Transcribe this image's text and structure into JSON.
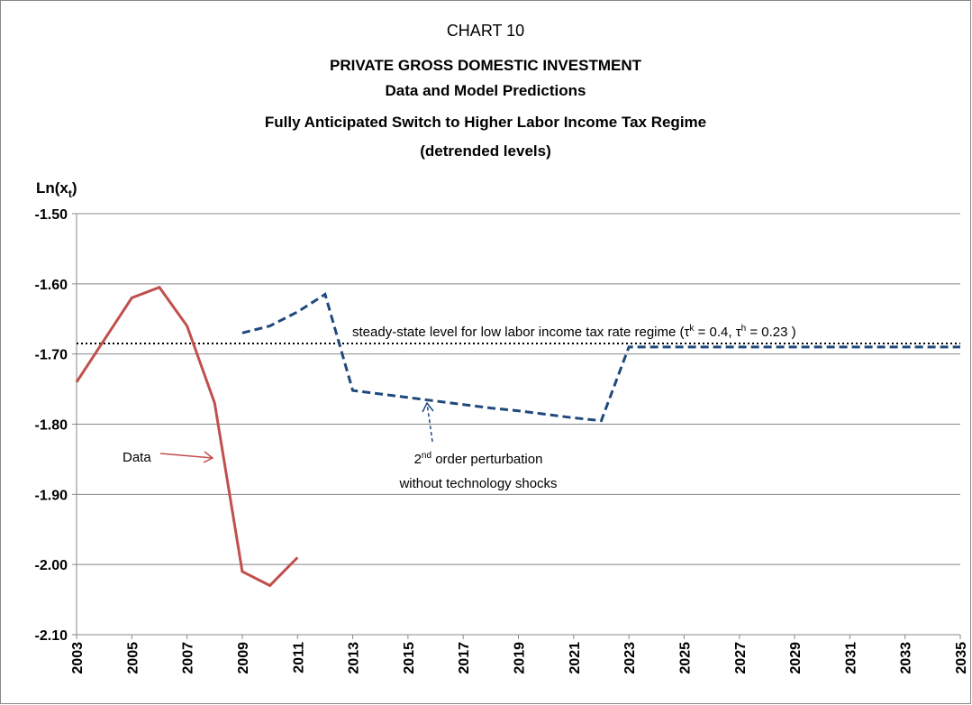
{
  "chart_data": {
    "type": "line",
    "title": "CHART 10",
    "subtitle": [
      "PRIVATE GROSS DOMESTIC INVESTMENT",
      "Data and Model Predictions",
      "Fully Anticipated Switch to Higher Labor Income Tax Regime",
      "(detrended levels)"
    ],
    "y_label": [
      "Ln(x",
      "t",
      ")"
    ],
    "x": [
      2003,
      2004,
      2005,
      2006,
      2007,
      2008,
      2009,
      2010,
      2011,
      2012,
      2013,
      2014,
      2015,
      2016,
      2017,
      2018,
      2019,
      2020,
      2021,
      2022,
      2023,
      2024,
      2025,
      2026,
      2027,
      2028,
      2029,
      2030,
      2031,
      2032,
      2033,
      2034,
      2035
    ],
    "series": [
      {
        "name": "Data",
        "color": "#c0504d",
        "dashed": false,
        "values": [
          -1.74,
          -1.68,
          -1.62,
          -1.605,
          -1.66,
          -1.77,
          -2.01,
          -2.03,
          -1.99,
          null,
          null,
          null,
          null,
          null,
          null,
          null,
          null,
          null,
          null,
          null,
          null,
          null,
          null,
          null,
          null,
          null,
          null,
          null,
          null,
          null,
          null,
          null,
          null
        ]
      },
      {
        "name": [
          "2",
          "nd",
          " order perturbation",
          "without  technology shocks"
        ],
        "color": "#1f497d",
        "dashed": true,
        "values": [
          null,
          null,
          null,
          null,
          null,
          null,
          -1.67,
          -1.66,
          -1.64,
          -1.615,
          -1.752,
          -1.757,
          -1.762,
          -1.767,
          -1.772,
          -1.777,
          -1.781,
          -1.786,
          -1.791,
          -1.795,
          -1.69,
          -1.69,
          -1.69,
          -1.69,
          -1.69,
          -1.69,
          -1.69,
          -1.69,
          -1.69,
          -1.69,
          -1.69,
          -1.69,
          -1.69
        ]
      }
    ],
    "reference_line": {
      "value": -1.685,
      "label": [
        "steady-state level for low labor income tax rate regime (τ",
        "k",
        " = 0.4, τ",
        "h",
        " = 0.23 )"
      ]
    },
    "xlim": [
      2003,
      2035
    ],
    "xticks": [
      2003,
      2005,
      2007,
      2009,
      2011,
      2013,
      2015,
      2017,
      2019,
      2021,
      2023,
      2025,
      2027,
      2029,
      2031,
      2033,
      2035
    ],
    "ylim": [
      -2.1,
      -1.5
    ],
    "yticks": [
      {
        "value": -2.1,
        "label": "-2.10"
      },
      {
        "value": -2.0,
        "label": "-2.00"
      },
      {
        "value": -1.9,
        "label": "-1.90"
      },
      {
        "value": -1.8,
        "label": "-1.80"
      },
      {
        "value": -1.7,
        "label": "-1.70"
      },
      {
        "value": -1.6,
        "label": "-1.60"
      },
      {
        "value": -1.5,
        "label": "-1.50"
      }
    ],
    "grid": true
  }
}
